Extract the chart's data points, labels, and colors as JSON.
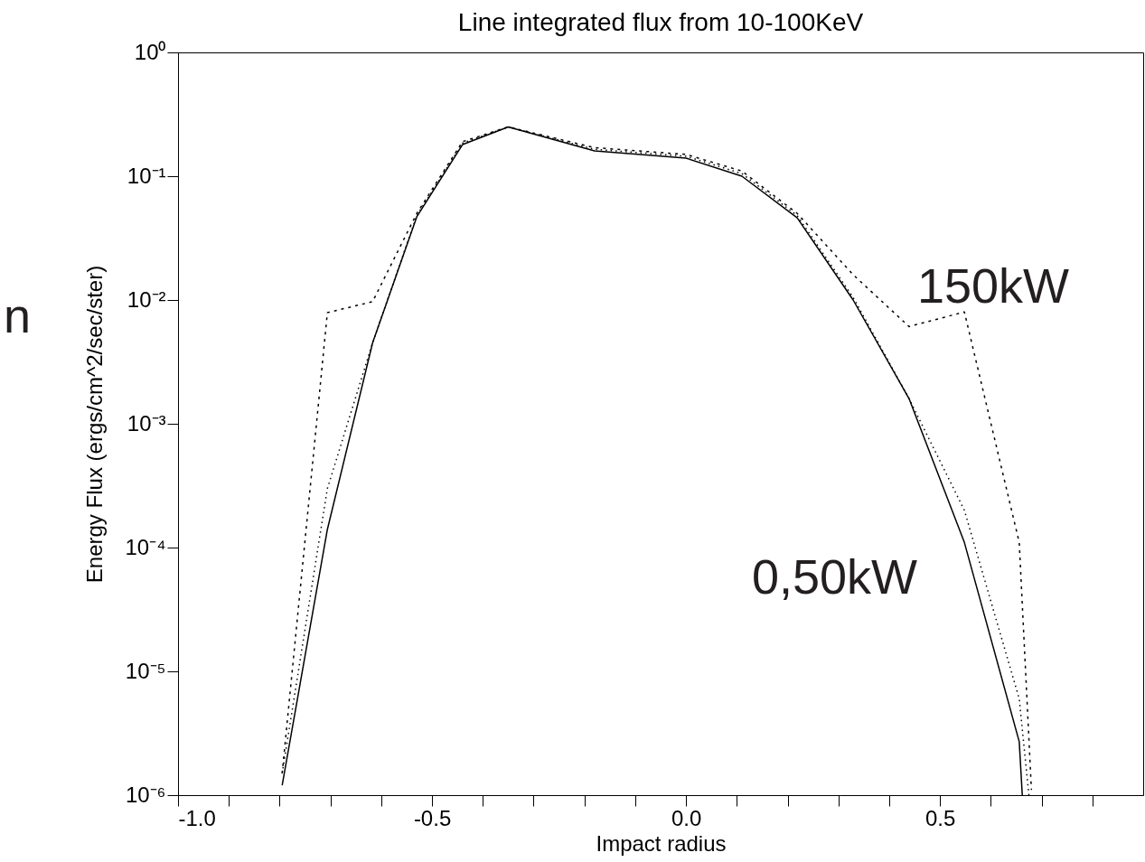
{
  "chart_data": {
    "type": "line",
    "title": "Line integrated flux from 10-100KeV",
    "xlabel": "Impact radius",
    "ylabel": "Energy Flux (ergs/cm^2/sec/ster)",
    "log": "y",
    "grid": false,
    "xlim": [
      -1.0,
      0.9
    ],
    "ylim": [
      1e-06,
      1
    ],
    "xticks": [
      {
        "value": -1.0,
        "label": "-1.0"
      },
      {
        "value": -0.9,
        "label": null
      },
      {
        "value": -0.8,
        "label": null
      },
      {
        "value": -0.7,
        "label": null
      },
      {
        "value": -0.6,
        "label": null
      },
      -0.5,
      {
        "value": -0.4,
        "label": null
      },
      {
        "value": -0.3,
        "label": null
      },
      {
        "value": -0.2,
        "label": null
      },
      {
        "value": -0.1,
        "label": null
      },
      {
        "value": 0,
        "label": "0.0"
      },
      {
        "value": 0.1,
        "label": null
      },
      {
        "value": 0.2,
        "label": null
      },
      {
        "value": 0.3,
        "label": null
      },
      {
        "value": 0.4,
        "label": null
      },
      0.5,
      {
        "value": 0.6,
        "label": null
      },
      {
        "value": 0.7,
        "label": null
      },
      {
        "value": 0.8,
        "label": null
      }
    ],
    "yticks": [
      {
        "value": 1e-06,
        "label": "10⁻⁶"
      },
      {
        "value": 1e-05,
        "label": "10⁻⁵"
      },
      {
        "value": 0.0001,
        "label": "10⁻⁴"
      },
      {
        "value": 0.001,
        "label": "10⁻³"
      },
      {
        "value": 0.01,
        "label": "10⁻²"
      },
      {
        "value": 0.1,
        "label": "10⁻¹"
      },
      {
        "value": 1,
        "label": "10⁰"
      }
    ],
    "series": [
      {
        "color": "#000000",
        "line_style": "solid",
        "x": [
          -0.795,
          -0.706,
          -0.617,
          -0.53,
          -0.44,
          -0.35,
          -0.18,
          0.0,
          0.11,
          0.219,
          0.329,
          0.439,
          0.548,
          0.656,
          0.662
        ],
        "values": [
          1.2e-06,
          0.00014,
          0.0045,
          0.047,
          0.18,
          0.25,
          0.16,
          0.14,
          0.1,
          0.046,
          0.01,
          0.0016,
          0.00011,
          2.7e-06,
          1e-06
        ]
      },
      {
        "color": "#000000",
        "line_style": "dotted",
        "x": [
          -0.795,
          -0.706,
          -0.617,
          -0.53,
          -0.44,
          -0.35,
          -0.18,
          0.0,
          0.11,
          0.219,
          0.329,
          0.439,
          0.548,
          0.656,
          0.675
        ],
        "values": [
          1.5e-06,
          0.0003,
          0.0045,
          0.048,
          0.185,
          0.25,
          0.165,
          0.145,
          0.105,
          0.048,
          0.0105,
          0.0016,
          0.0002,
          6e-06,
          1e-06
        ]
      },
      {
        "color": "#000000",
        "line_style": "dashed",
        "x": [
          -0.795,
          -0.706,
          -0.617,
          -0.53,
          -0.44,
          -0.35,
          -0.18,
          0.0,
          0.11,
          0.219,
          0.329,
          0.439,
          0.548,
          0.656,
          0.68
        ],
        "values": [
          1.5e-06,
          0.0079,
          0.0097,
          0.05,
          0.19,
          0.25,
          0.17,
          0.15,
          0.11,
          0.05,
          0.016,
          0.0061,
          0.008,
          0.00011,
          1.1e-06
        ]
      }
    ],
    "annotations": [
      "150kW",
      "0,50kW",
      "n"
    ]
  }
}
